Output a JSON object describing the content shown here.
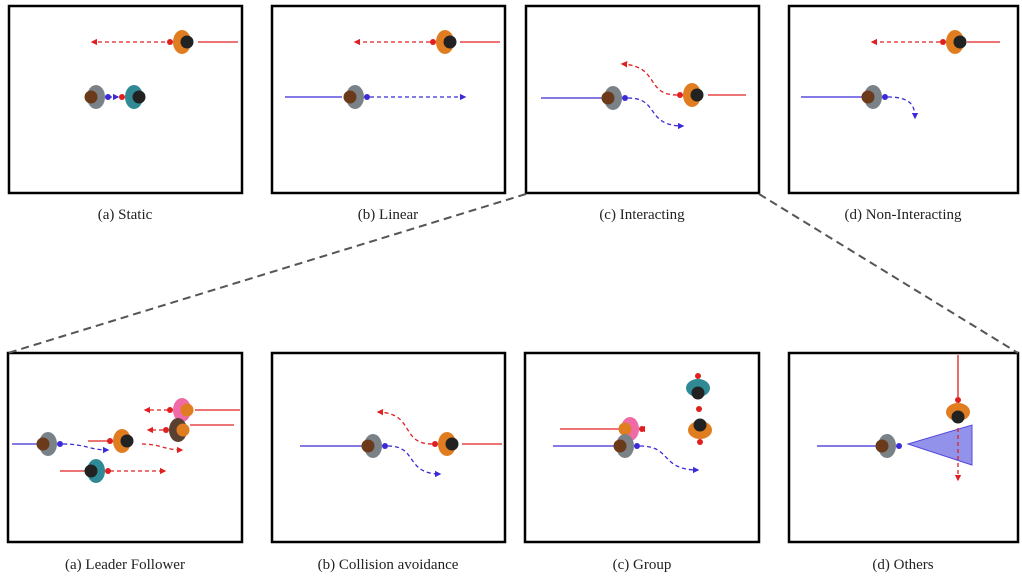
{
  "top": {
    "captions": [
      "(a) Static",
      "(b) Linear",
      "(c) Interacting",
      "(d) Non-Interacting"
    ]
  },
  "bottom": {
    "captions": [
      "(a) Leader Follower",
      "(b) Collision avoidance",
      "(c) Group",
      "(d) Others"
    ]
  }
}
